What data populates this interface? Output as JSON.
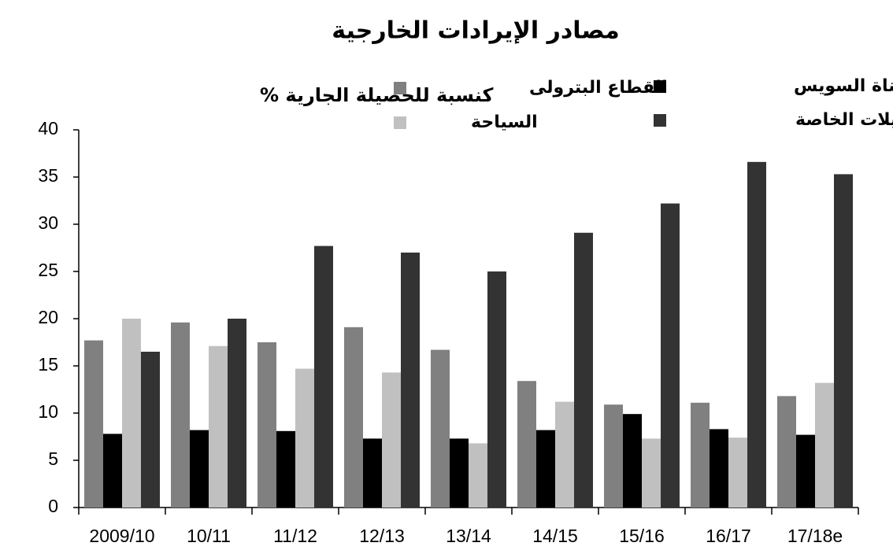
{
  "chart_data": {
    "type": "bar",
    "title": "مصادر الإيرادات الخارجية",
    "y_label": "كنسبة للحصيلة الجارية %",
    "categories": [
      "2009/10",
      "10/11",
      "11/12",
      "12/13",
      "13/14",
      "14/15",
      "15/16",
      "16/17",
      "17/18e"
    ],
    "series": [
      {
        "name": "القطاع البترولى",
        "color": "#808080",
        "values": [
          17.7,
          19.6,
          17.5,
          19.1,
          16.7,
          13.4,
          10.9,
          11.1,
          11.8
        ]
      },
      {
        "name": "قناة السويس",
        "color": "#000000",
        "values": [
          7.8,
          8.2,
          8.1,
          7.3,
          7.3,
          8.2,
          9.9,
          8.3,
          7.7
        ]
      },
      {
        "name": "السياحة",
        "color": "#c0c0c0",
        "values": [
          20,
          17.1,
          14.7,
          14.3,
          6.8,
          11.2,
          7.3,
          7.4,
          13.2
        ]
      },
      {
        "name": "التحويلات الخاصة",
        "color": "#333333",
        "values": [
          16.5,
          20,
          27.7,
          27,
          25,
          29.1,
          32.2,
          36.6,
          35.3
        ]
      }
    ],
    "ylim": [
      0,
      40
    ],
    "yticks": [
      0,
      5,
      10,
      15,
      20,
      25,
      30,
      35,
      40
    ],
    "grid": false
  }
}
